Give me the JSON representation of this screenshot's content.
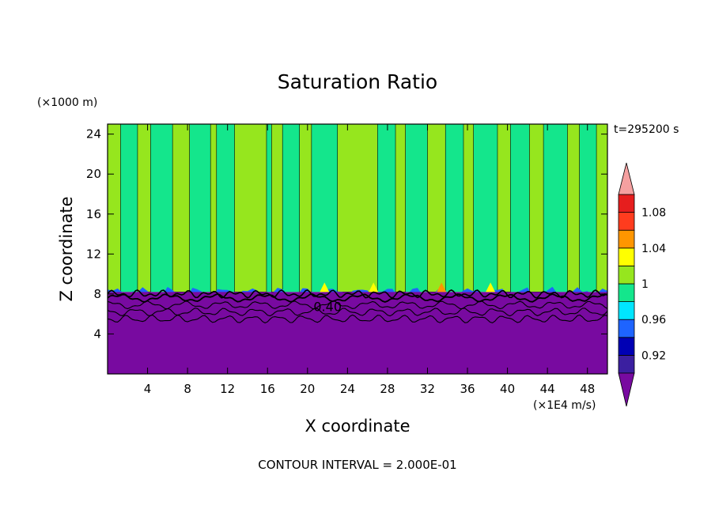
{
  "chart_data": {
    "type": "heatmap",
    "title": "Saturation Ratio",
    "xlabel": "X coordinate",
    "ylabel": "Z coordinate",
    "y_unit": "(×1000 m)",
    "x_unit": "(×1E4 m/s)",
    "time_label": "t=295200 s",
    "footer": "CONTOUR INTERVAL = 2.000E-01",
    "contour_label": "0.40",
    "xlim": [
      0,
      50
    ],
    "ylim": [
      0,
      25
    ],
    "x_ticks": [
      "4",
      "8",
      "12",
      "16",
      "20",
      "24",
      "28",
      "32",
      "36",
      "40",
      "44",
      "48"
    ],
    "x_tick_values": [
      4,
      8,
      12,
      16,
      20,
      24,
      28,
      32,
      36,
      40,
      44,
      48
    ],
    "y_ticks": [
      "4",
      "8",
      "12",
      "16",
      "20",
      "24"
    ],
    "y_tick_values": [
      4,
      8,
      12,
      16,
      20,
      24
    ],
    "colorbar": {
      "labels": [
        "0.92",
        "0.96",
        "1",
        "1.04",
        "1.08"
      ],
      "label_values": [
        0.92,
        0.96,
        1.0,
        1.04,
        1.08
      ],
      "min": 0.9,
      "max": 1.1,
      "levels": [
        {
          "from": 0.9,
          "to": 0.92,
          "color": "#3b1fa0"
        },
        {
          "from": 0.92,
          "to": 0.94,
          "color": "#0000b4"
        },
        {
          "from": 0.94,
          "to": 0.96,
          "color": "#1e64ff"
        },
        {
          "from": 0.96,
          "to": 0.98,
          "color": "#00e6ff"
        },
        {
          "from": 0.98,
          "to": 1.0,
          "color": "#14e68c"
        },
        {
          "from": 1.0,
          "to": 1.02,
          "color": "#96e61e"
        },
        {
          "from": 1.02,
          "to": 1.04,
          "color": "#ffff00"
        },
        {
          "from": 1.04,
          "to": 1.06,
          "color": "#ff9600"
        },
        {
          "from": 1.06,
          "to": 1.08,
          "color": "#ff3c1e"
        },
        {
          "from": 1.08,
          "to": 1.1,
          "color": "#e61e1e"
        }
      ],
      "under_color": "#780aa0",
      "over_color": "#f5a0a0"
    },
    "fields": {
      "dry_layer_top_z": 8.2,
      "green_bands": [
        {
          "from": 0.0,
          "to": 1.3
        },
        {
          "from": 3.0,
          "to": 4.3
        },
        {
          "from": 6.5,
          "to": 8.2
        },
        {
          "from": 10.3,
          "to": 10.9
        },
        {
          "from": 12.7,
          "to": 15.9
        },
        {
          "from": 16.4,
          "to": 17.5
        },
        {
          "from": 19.2,
          "to": 20.4
        },
        {
          "from": 23.0,
          "to": 27.0
        },
        {
          "from": 28.8,
          "to": 29.8
        },
        {
          "from": 32.0,
          "to": 33.8
        },
        {
          "from": 35.6,
          "to": 36.6
        },
        {
          "from": 39.0,
          "to": 40.3
        },
        {
          "from": 42.2,
          "to": 43.6
        },
        {
          "from": 46.0,
          "to": 47.2
        },
        {
          "from": 48.9,
          "to": 50.0
        }
      ],
      "supersaturated_patches": [
        {
          "x": 21.7,
          "value": 1.03
        },
        {
          "x": 26.6,
          "value": 1.03
        },
        {
          "x": 33.4,
          "value": 1.04
        },
        {
          "x": 38.3,
          "value": 1.02
        }
      ],
      "contour_lines_z": [
        7.6,
        6.9,
        6.2,
        5.5
      ]
    }
  }
}
